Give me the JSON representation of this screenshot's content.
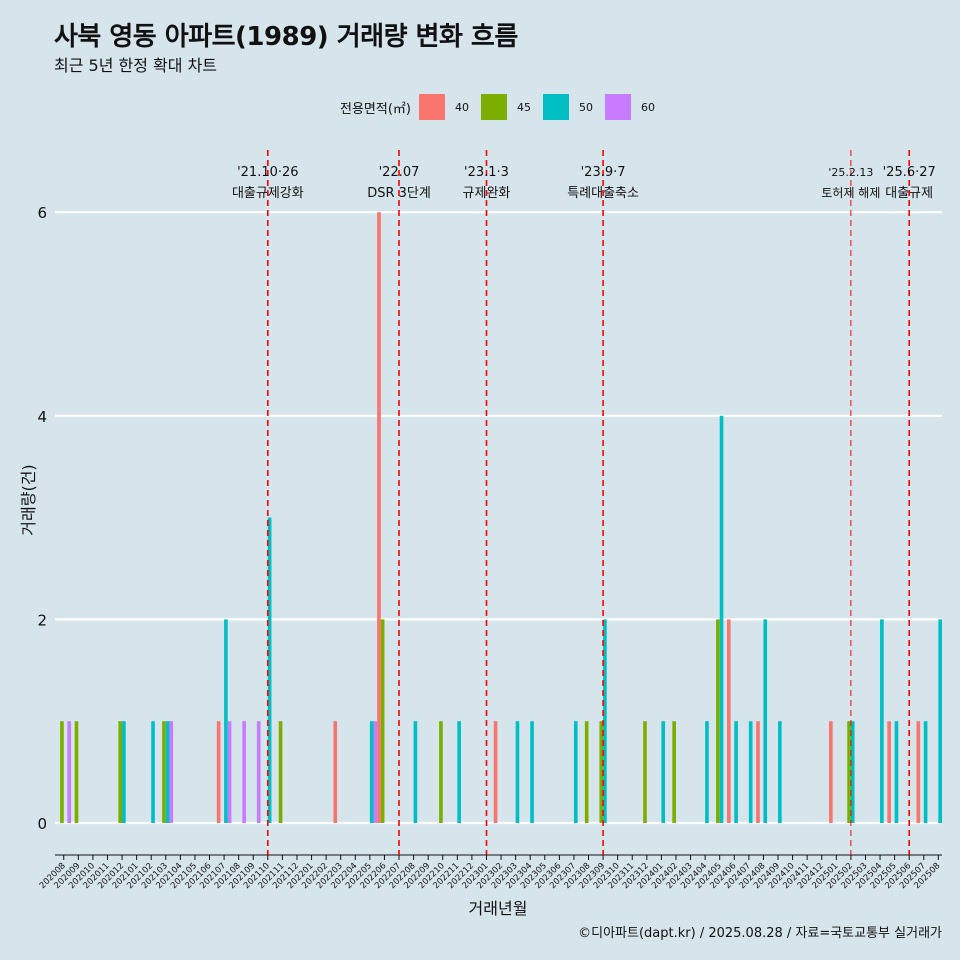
{
  "title": "사북 영동 아파트(1989) 거래량 변화 흐름",
  "subtitle": "최근 5년 한정 확대 차트",
  "caption": "©디아파트(dapt.kr) / 2025.08.28 / 자료=국토교통부 실거래가",
  "legend": {
    "title": "전용면적(㎡)",
    "items": [
      {
        "label": "40",
        "color": "#F8766D"
      },
      {
        "label": "45",
        "color": "#7CAE00"
      },
      {
        "label": "50",
        "color": "#00BFC4"
      },
      {
        "label": "60",
        "color": "#C77CFF"
      }
    ]
  },
  "chart_data": {
    "type": "bar",
    "xlabel": "거래년월",
    "ylabel": "거래량(건)",
    "ylim": [
      0,
      6
    ],
    "yticks": [
      0,
      2,
      4,
      6
    ],
    "grid": true,
    "legend_position": "top",
    "categories": [
      "202008",
      "202009",
      "202010",
      "202011",
      "202012",
      "202101",
      "202102",
      "202103",
      "202104",
      "202105",
      "202106",
      "202107",
      "202108",
      "202109",
      "202110",
      "202111",
      "202112",
      "202201",
      "202202",
      "202203",
      "202204",
      "202205",
      "202206",
      "202207",
      "202208",
      "202209",
      "202210",
      "202211",
      "202212",
      "202301",
      "202302",
      "202303",
      "202304",
      "202305",
      "202306",
      "202307",
      "202308",
      "202309",
      "202310",
      "202311",
      "202312",
      "202401",
      "202402",
      "202403",
      "202404",
      "202405",
      "202406",
      "202407",
      "202408",
      "202409",
      "202410",
      "202411",
      "202412",
      "202501",
      "202502",
      "202503",
      "202504",
      "202505",
      "202506",
      "202507",
      "202508"
    ],
    "series": [
      {
        "name": "40",
        "color": "#F8766D",
        "values": [
          0,
          0,
          0,
          0,
          0,
          0,
          0,
          0,
          0,
          0,
          0,
          1,
          0,
          0,
          0,
          0,
          0,
          0,
          0,
          1,
          0,
          0,
          6,
          0,
          0,
          0,
          0,
          0,
          0,
          0,
          1,
          0,
          0,
          0,
          0,
          0,
          0,
          0,
          0,
          0,
          0,
          0,
          0,
          0,
          0,
          0,
          2,
          0,
          1,
          0,
          0,
          0,
          0,
          1,
          0,
          0,
          0,
          1,
          0,
          1,
          0
        ]
      },
      {
        "name": "45",
        "color": "#7CAE00",
        "values": [
          1,
          1,
          0,
          0,
          1,
          0,
          0,
          1,
          0,
          0,
          0,
          0,
          0,
          0,
          0,
          1,
          0,
          0,
          0,
          0,
          0,
          0,
          2,
          0,
          0,
          0,
          1,
          0,
          0,
          0,
          0,
          0,
          0,
          0,
          0,
          0,
          1,
          1,
          0,
          0,
          1,
          0,
          1,
          0,
          0,
          2,
          0,
          0,
          0,
          0,
          0,
          0,
          0,
          0,
          1,
          0,
          0,
          0,
          0,
          0,
          0
        ]
      },
      {
        "name": "50",
        "color": "#00BFC4",
        "values": [
          0,
          0,
          0,
          0,
          1,
          0,
          1,
          1,
          0,
          0,
          0,
          2,
          0,
          0,
          3,
          0,
          0,
          0,
          0,
          0,
          0,
          1,
          0,
          0,
          1,
          0,
          0,
          1,
          0,
          0,
          0,
          1,
          1,
          0,
          0,
          1,
          0,
          2,
          0,
          0,
          0,
          1,
          0,
          0,
          1,
          4,
          1,
          1,
          2,
          1,
          0,
          0,
          0,
          0,
          1,
          0,
          2,
          1,
          0,
          1,
          2
        ]
      },
      {
        "name": "60",
        "color": "#C77CFF",
        "values": [
          1,
          0,
          0,
          0,
          0,
          0,
          0,
          1,
          0,
          0,
          0,
          1,
          1,
          1,
          0,
          0,
          0,
          0,
          0,
          0,
          0,
          1,
          0,
          0,
          0,
          0,
          0,
          0,
          0,
          0,
          0,
          0,
          0,
          0,
          0,
          0,
          0,
          0,
          0,
          0,
          0,
          0,
          0,
          0,
          0,
          0,
          0,
          0,
          0,
          0,
          0,
          0,
          0,
          0,
          0,
          0,
          0,
          0,
          0,
          0,
          0
        ]
      }
    ],
    "annotations": [
      {
        "date": "'21.10·26",
        "label": "대출규제강화",
        "category": "202110"
      },
      {
        "date": "'22.07",
        "label": "DSR 3단계",
        "category": "202207"
      },
      {
        "date": "'23.1·3",
        "label": "규제완화",
        "category": "202301"
      },
      {
        "date": "'23.9·7",
        "label": "특례대출축소",
        "category": "202309"
      },
      {
        "date": "'25.2.13",
        "label": "토허제 해제",
        "category": "202502"
      },
      {
        "date": "'25.6·27",
        "label": "대출규제",
        "category": "202506"
      }
    ]
  }
}
